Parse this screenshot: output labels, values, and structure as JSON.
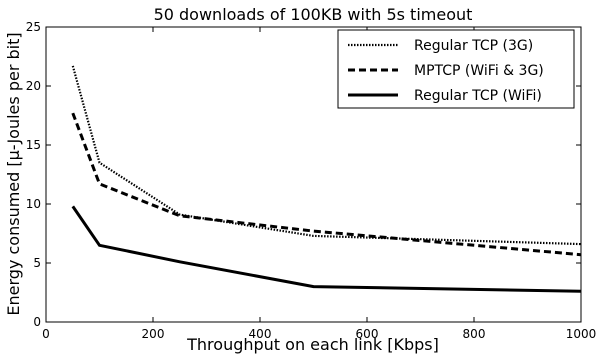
{
  "chart_data": {
    "type": "line",
    "title": "50 downloads of 100KB with 5s timeout",
    "xlabel": "Throughput on each link [Kbps]",
    "ylabel": "Energy consumed [µ-Joules per bit]",
    "xlim": [
      0,
      1000
    ],
    "ylim": [
      0,
      25
    ],
    "x_ticks": [
      0,
      200,
      400,
      600,
      800,
      1000
    ],
    "y_ticks": [
      0,
      5,
      10,
      15,
      20,
      25
    ],
    "grid": false,
    "legend_position": "top-right",
    "series": [
      {
        "name": "Regular TCP (3G)",
        "style": "dotted",
        "color": "#000000",
        "x": [
          50,
          100,
          250,
          500,
          1000
        ],
        "y": [
          21.7,
          13.5,
          9.1,
          7.3,
          6.6
        ]
      },
      {
        "name": "MPTCP (WiFi & 3G)",
        "style": "dashed",
        "color": "#000000",
        "x": [
          50,
          100,
          250,
          500,
          1000
        ],
        "y": [
          17.7,
          11.7,
          9.0,
          7.7,
          5.7
        ]
      },
      {
        "name": "Regular TCP (WiFi)",
        "style": "solid",
        "color": "#000000",
        "x": [
          50,
          100,
          250,
          500,
          1000
        ],
        "y": [
          9.8,
          6.5,
          5.1,
          3.0,
          2.6
        ]
      }
    ]
  }
}
